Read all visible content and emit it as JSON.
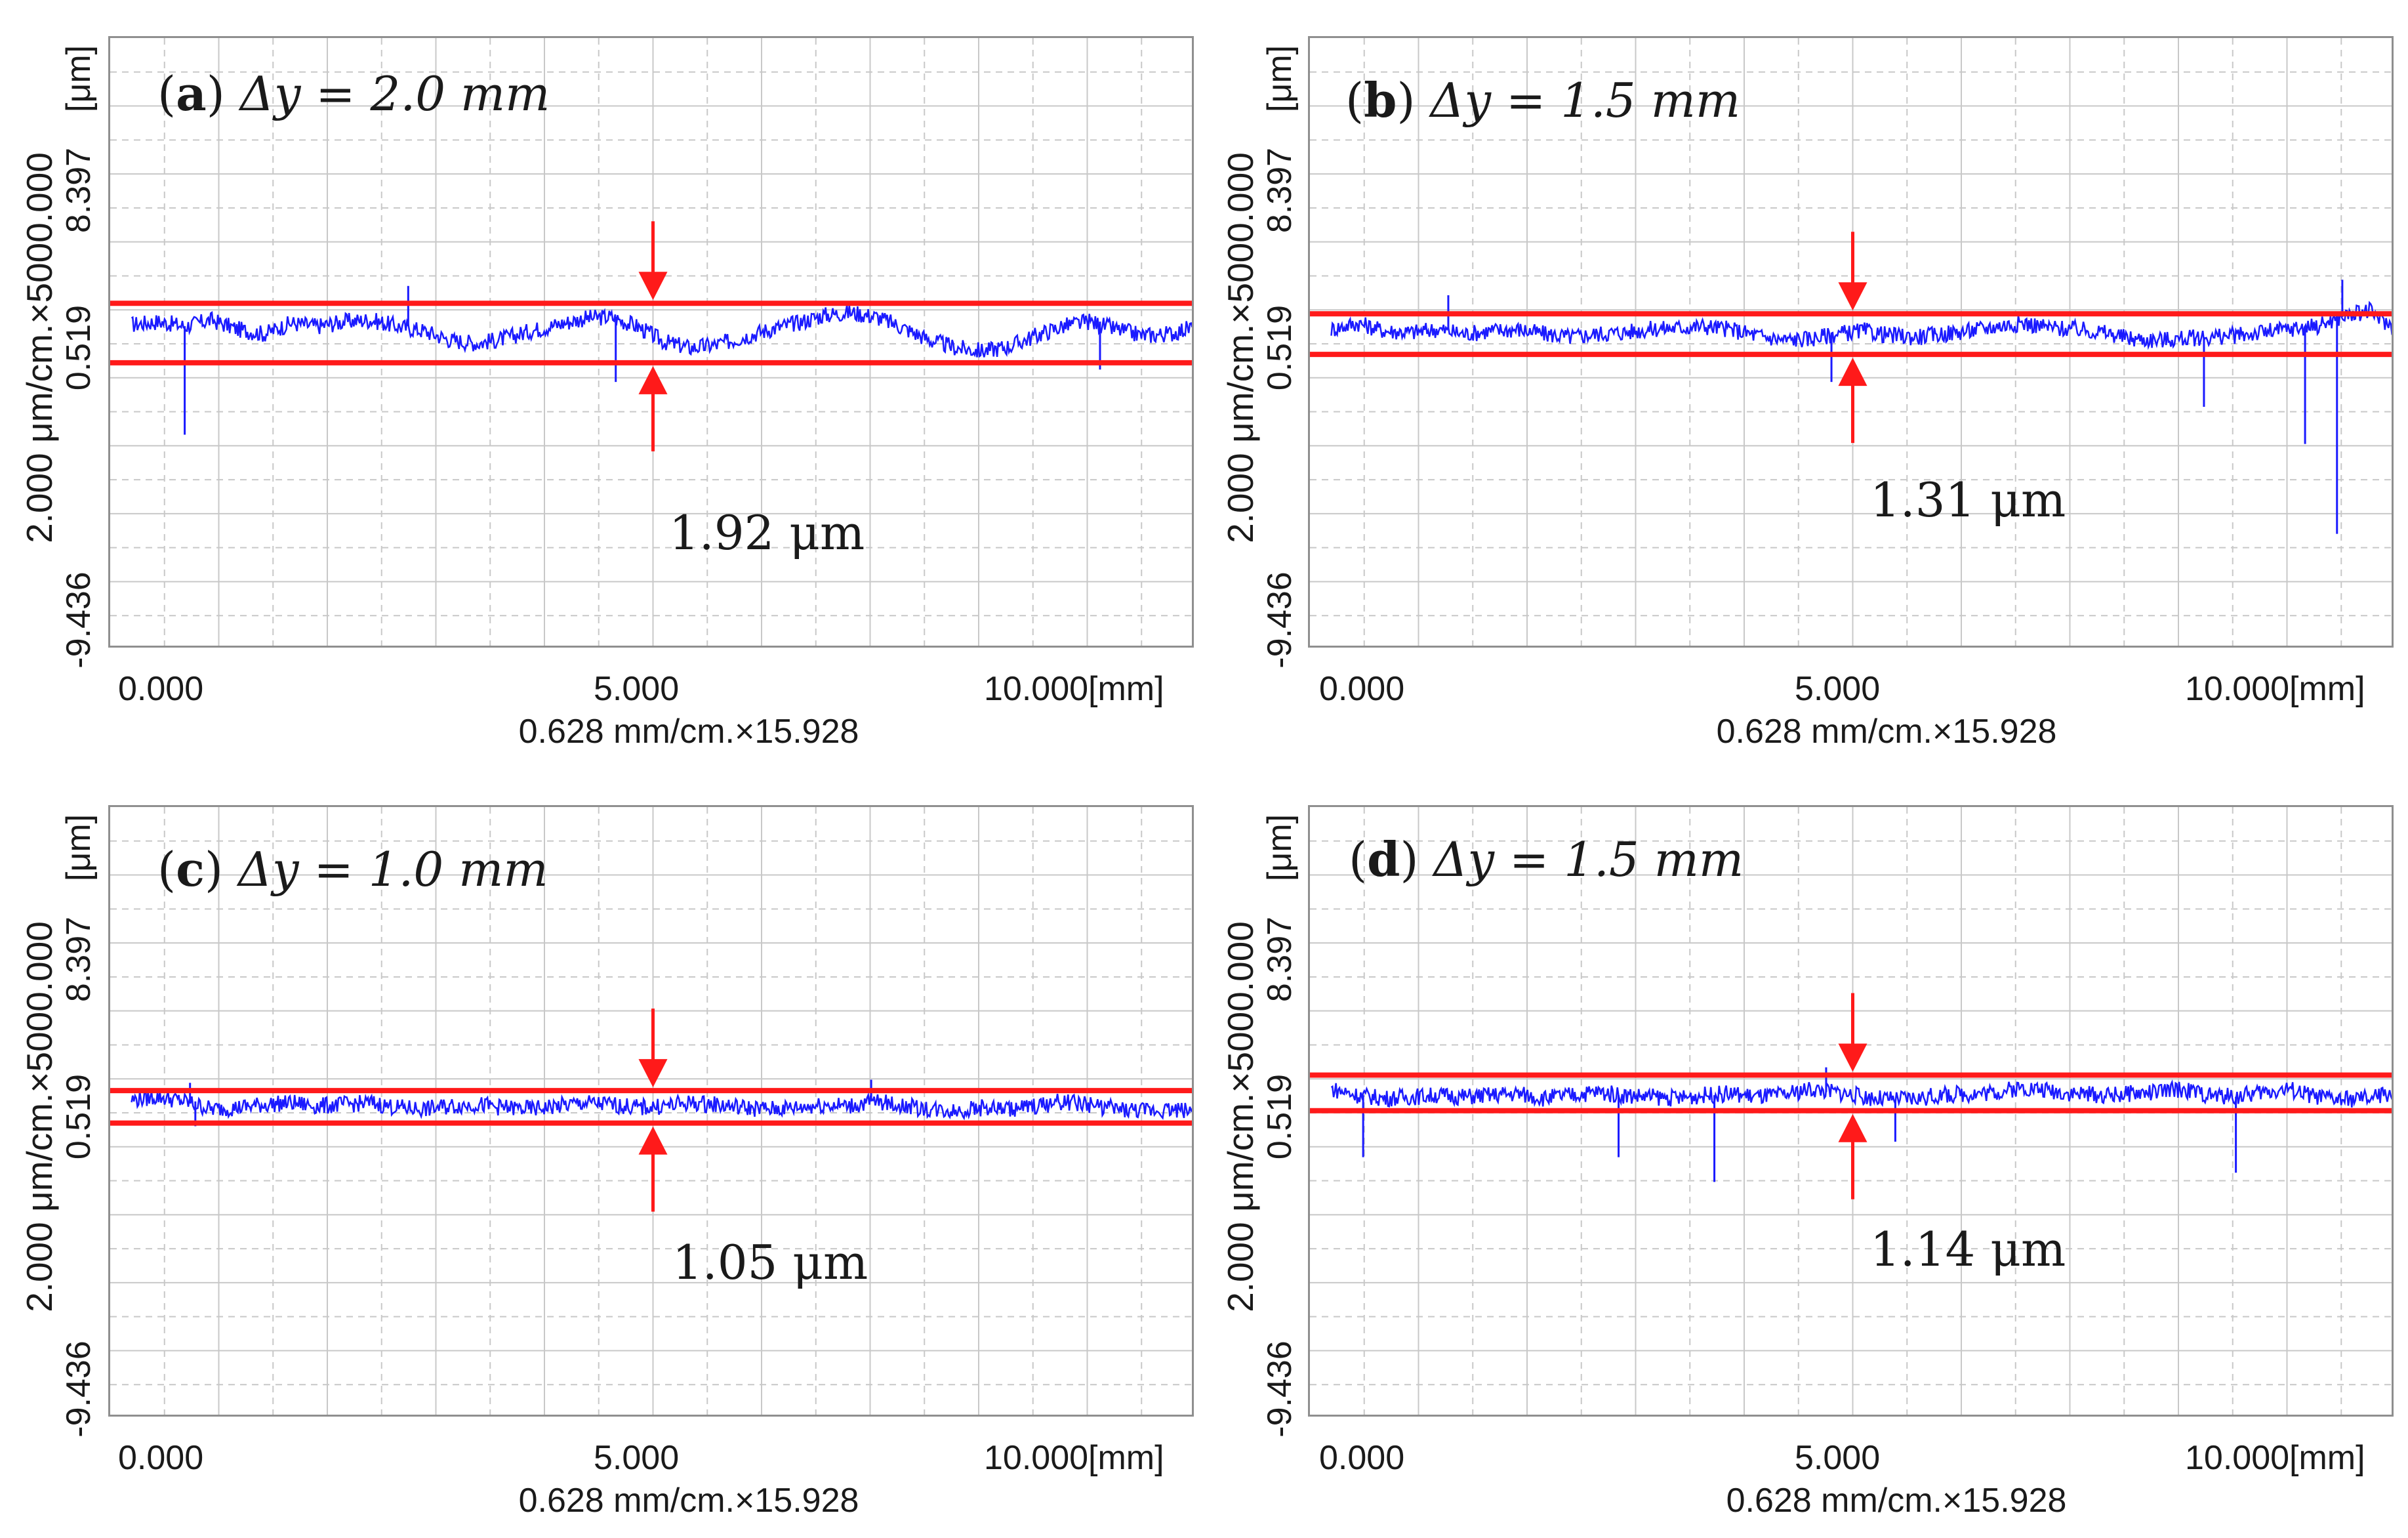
{
  "colors": {
    "trace": "#1a1aff",
    "band": "#ff1a1a",
    "grid": "#c8c8c8",
    "frame": "#8f8f8f"
  },
  "chart_data": [
    {
      "type": "line",
      "panel_id": "(a)",
      "label_letter": "a",
      "label_text": "Δy =  2.0 mm",
      "title": "(a) Δy = 2.0 mm",
      "measurement": "1.92 μm",
      "ylabel": "2.000 μm/cm.×5000.000",
      "y_unit": "[μm]",
      "yticks": [
        "8.397",
        "0.519",
        "-9.436"
      ],
      "xlabel": "0.628 mm/cm.×15.928",
      "xticks": [
        "0.000",
        "5.000",
        "10.000[mm]"
      ],
      "xlim": [
        -0.2,
        10.0
      ],
      "ylim": [
        -9.436,
        10.3
      ],
      "band_upper_um": 1.74,
      "band_lower_um": -0.18,
      "arrow_x_mm": 4.9,
      "series": [
        {
          "name": "profile",
          "x": [
            0.0,
            0.25,
            0.5,
            0.75,
            1.0,
            1.25,
            1.5,
            1.75,
            2.0,
            2.25,
            2.5,
            2.75,
            3.0,
            3.25,
            3.5,
            3.75,
            4.0,
            4.25,
            4.5,
            4.75,
            5.0,
            5.25,
            5.5,
            5.75,
            6.0,
            6.25,
            6.5,
            6.75,
            7.0,
            7.25,
            7.5,
            7.75,
            8.0,
            8.25,
            8.5,
            8.75,
            9.0,
            9.25,
            9.5,
            9.75,
            10.0
          ],
          "y": [
            1.05,
            1.15,
            1.0,
            1.2,
            0.9,
            0.75,
            1.1,
            1.0,
            1.15,
            1.2,
            1.0,
            0.85,
            0.55,
            0.45,
            0.6,
            0.85,
            1.05,
            1.25,
            1.3,
            1.0,
            0.5,
            0.3,
            0.4,
            0.65,
            0.9,
            1.1,
            1.35,
            1.45,
            1.3,
            0.95,
            0.55,
            0.3,
            0.2,
            0.35,
            0.7,
            1.0,
            1.15,
            0.9,
            0.7,
            0.75,
            1.0
          ]
        }
      ],
      "spikes": [
        {
          "x": 0.5,
          "y": -2.5
        },
        {
          "x": 2.6,
          "y": 2.3
        },
        {
          "x": 4.55,
          "y": -0.8
        },
        {
          "x": 9.1,
          "y": -0.4
        }
      ]
    },
    {
      "type": "line",
      "panel_id": "(b)",
      "label_letter": "b",
      "label_text": "Δy =  1.5 mm",
      "title": "(b) Δy = 1.5 mm",
      "measurement": "1.31 μm",
      "ylabel": "2.000 μm/cm.×5000.000",
      "y_unit": "[μm]",
      "yticks": [
        "8.397",
        "0.519",
        "-9.436"
      ],
      "xlabel": "0.628 mm/cm.×15.928",
      "xticks": [
        "0.000",
        "5.000",
        "10.000[mm]"
      ],
      "xlim": [
        -0.2,
        10.0
      ],
      "ylim": [
        -9.436,
        10.3
      ],
      "band_upper_um": 1.4,
      "band_lower_um": 0.09,
      "arrow_x_mm": 4.9,
      "series": [
        {
          "name": "profile",
          "x": [
            0.0,
            0.25,
            0.5,
            0.75,
            1.0,
            1.25,
            1.5,
            1.75,
            2.0,
            2.25,
            2.5,
            2.75,
            3.0,
            3.25,
            3.5,
            3.75,
            4.0,
            4.25,
            4.5,
            4.75,
            5.0,
            5.25,
            5.5,
            5.75,
            6.0,
            6.25,
            6.5,
            6.75,
            7.0,
            7.25,
            7.5,
            7.75,
            8.0,
            8.25,
            8.5,
            8.75,
            9.0,
            9.25,
            9.5,
            9.75,
            10.0
          ],
          "y": [
            0.9,
            1.1,
            0.85,
            0.8,
            0.9,
            0.75,
            0.85,
            0.9,
            0.75,
            0.65,
            0.75,
            0.8,
            0.9,
            0.95,
            1.0,
            0.9,
            0.7,
            0.55,
            0.6,
            0.75,
            0.85,
            0.7,
            0.65,
            0.75,
            0.85,
            1.0,
            1.1,
            0.95,
            0.9,
            0.8,
            0.6,
            0.55,
            0.6,
            0.65,
            0.7,
            0.8,
            0.9,
            1.0,
            1.3,
            1.5,
            0.9
          ]
        }
      ],
      "spikes": [
        {
          "x": 1.1,
          "y": 2.0
        },
        {
          "x": 4.7,
          "y": -0.8
        },
        {
          "x": 8.2,
          "y": -1.6
        },
        {
          "x": 9.15,
          "y": -2.8
        },
        {
          "x": 9.45,
          "y": -5.7
        },
        {
          "x": 9.5,
          "y": 2.5
        }
      ]
    },
    {
      "type": "line",
      "panel_id": "(c)",
      "label_letter": "c",
      "label_text": "Δy =  1.0 mm",
      "title": "(c) Δy = 1.0 mm",
      "measurement": "1.05 μm",
      "ylabel": "2.000 μm/cm.×5000.000",
      "y_unit": "[μm]",
      "yticks": [
        "8.397",
        "0.519",
        "-9.436"
      ],
      "xlabel": "0.628 mm/cm.×15.928",
      "xticks": [
        "0.000",
        "5.000",
        "10.000[mm]"
      ],
      "xlim": [
        -0.2,
        10.0
      ],
      "ylim": [
        -9.436,
        10.3
      ],
      "band_upper_um": 1.15,
      "band_lower_um": 0.1,
      "arrow_x_mm": 4.9,
      "series": [
        {
          "name": "profile",
          "x": [
            0.0,
            0.25,
            0.5,
            0.75,
            1.0,
            1.25,
            1.5,
            1.75,
            2.0,
            2.25,
            2.5,
            2.75,
            3.0,
            3.25,
            3.5,
            3.75,
            4.0,
            4.25,
            4.5,
            4.75,
            5.0,
            5.25,
            5.5,
            5.75,
            6.0,
            6.25,
            6.5,
            6.75,
            7.0,
            7.25,
            7.5,
            7.75,
            8.0,
            8.25,
            8.5,
            8.75,
            9.0,
            9.25,
            9.5,
            9.75,
            10.0
          ],
          "y": [
            0.85,
            0.95,
            0.8,
            0.55,
            0.6,
            0.7,
            0.75,
            0.65,
            0.7,
            0.75,
            0.6,
            0.55,
            0.65,
            0.7,
            0.6,
            0.55,
            0.65,
            0.75,
            0.7,
            0.6,
            0.65,
            0.75,
            0.7,
            0.6,
            0.55,
            0.6,
            0.7,
            0.65,
            0.8,
            0.65,
            0.55,
            0.5,
            0.6,
            0.55,
            0.65,
            0.8,
            0.7,
            0.55,
            0.5,
            0.55,
            0.5
          ]
        }
      ],
      "spikes": [
        {
          "x": 0.55,
          "y": 1.4
        },
        {
          "x": 6.95,
          "y": 1.5
        },
        {
          "x": 0.6,
          "y": 0.0
        }
      ]
    },
    {
      "type": "line",
      "panel_id": "(d)",
      "label_letter": "d",
      "label_text": "Δy =  1.5 mm",
      "title": "(d) Δy = 1.5 mm",
      "measurement": "1.14 μm",
      "ylabel": "2.000 μm/cm.×5000.000",
      "y_unit": "[μm]",
      "yticks": [
        "8.397",
        "0.519",
        "-9.436"
      ],
      "xlabel": "0.628 mm/cm.×15.928",
      "xticks": [
        "0.000",
        "5.000",
        "10.000[mm]"
      ],
      "xlim": [
        -0.2,
        10.0
      ],
      "ylim": [
        -9.436,
        10.3
      ],
      "band_upper_um": 1.65,
      "band_lower_um": 0.5,
      "arrow_x_mm": 4.9,
      "series": [
        {
          "name": "profile",
          "x": [
            0.0,
            0.25,
            0.5,
            0.75,
            1.0,
            1.25,
            1.5,
            1.75,
            2.0,
            2.25,
            2.5,
            2.75,
            3.0,
            3.25,
            3.5,
            3.75,
            4.0,
            4.25,
            4.5,
            4.75,
            5.0,
            5.25,
            5.5,
            5.75,
            6.0,
            6.25,
            6.5,
            6.75,
            7.0,
            7.25,
            7.5,
            7.75,
            8.0,
            8.25,
            8.5,
            8.75,
            9.0,
            9.25,
            9.5,
            9.75,
            10.0
          ],
          "y": [
            1.2,
            1.0,
            0.9,
            0.95,
            1.0,
            0.95,
            1.0,
            1.05,
            0.9,
            1.0,
            1.1,
            1.0,
            0.95,
            0.9,
            1.0,
            1.05,
            0.95,
            1.0,
            1.2,
            1.1,
            0.95,
            0.85,
            0.9,
            1.0,
            1.05,
            1.1,
            1.25,
            1.15,
            1.05,
            1.0,
            1.05,
            1.1,
            1.2,
            1.0,
            0.95,
            1.1,
            1.2,
            0.95,
            0.85,
            0.9,
            1.1
          ]
        }
      ],
      "spikes": [
        {
          "x": 0.3,
          "y": -1.0
        },
        {
          "x": 2.7,
          "y": -1.0
        },
        {
          "x": 3.6,
          "y": -1.8
        },
        {
          "x": 5.3,
          "y": -0.5
        },
        {
          "x": 8.5,
          "y": -1.5
        },
        {
          "x": 4.65,
          "y": 1.9
        }
      ]
    }
  ]
}
